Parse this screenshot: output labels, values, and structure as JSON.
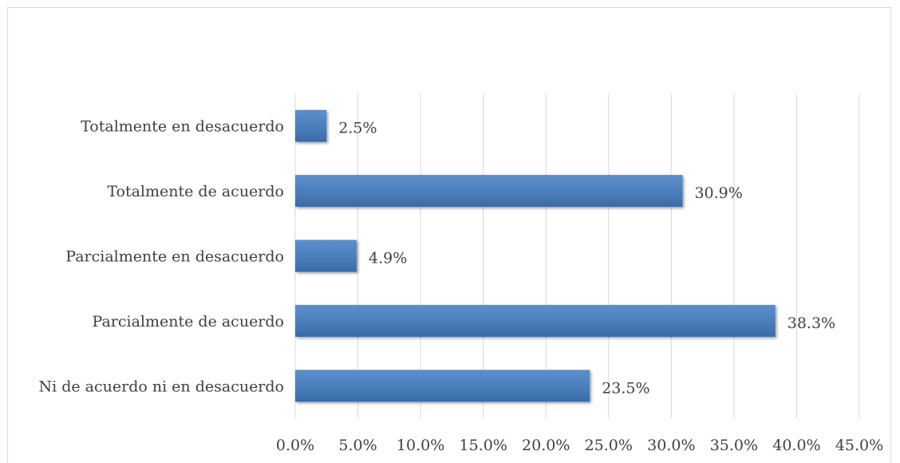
{
  "chart_data": {
    "type": "bar",
    "orientation": "horizontal",
    "title": "",
    "xlabel": "",
    "ylabel": "",
    "categories": [
      "Totalmente en desacuerdo",
      "Totalmente de acuerdo",
      "Parcialmente en desacuerdo",
      "Parcialmente de acuerdo",
      "Ni de acuerdo ni en desacuerdo"
    ],
    "values": [
      2.5,
      30.9,
      4.9,
      38.3,
      23.5
    ],
    "value_labels": [
      "2.5%",
      "30.9%",
      "4.9%",
      "38.3%",
      "23.5%"
    ],
    "xlim": [
      0,
      45
    ],
    "x_ticks": [
      0,
      5,
      10,
      15,
      20,
      25,
      30,
      35,
      40,
      45
    ],
    "x_tick_labels": [
      "0.0%",
      "5.0%",
      "10.0%",
      "15.0%",
      "20.0%",
      "25.0%",
      "30.0%",
      "35.0%",
      "40.0%",
      "45.0%"
    ],
    "grid": "vertical",
    "legend": "none",
    "bar_color": "#4a7ebb",
    "bar_color_light": "#5b8fce",
    "bar_color_dark": "#3b6aa5",
    "grid_color": "#d9d9d9",
    "text_color": "#404040"
  }
}
